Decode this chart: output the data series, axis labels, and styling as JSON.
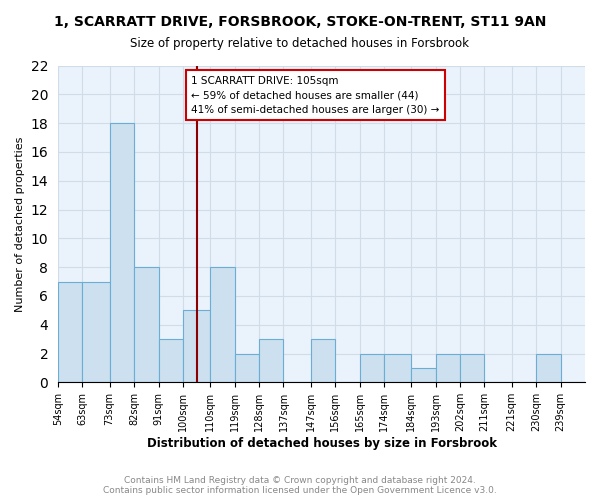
{
  "title": "1, SCARRATT DRIVE, FORSBROOK, STOKE-ON-TRENT, ST11 9AN",
  "subtitle": "Size of property relative to detached houses in Forsbrook",
  "xlabel": "Distribution of detached houses by size in Forsbrook",
  "ylabel": "Number of detached properties",
  "bin_labels": [
    "54sqm",
    "63sqm",
    "73sqm",
    "82sqm",
    "91sqm",
    "100sqm",
    "110sqm",
    "119sqm",
    "128sqm",
    "137sqm",
    "147sqm",
    "156sqm",
    "165sqm",
    "174sqm",
    "184sqm",
    "193sqm",
    "202sqm",
    "211sqm",
    "221sqm",
    "230sqm",
    "239sqm"
  ],
  "bin_edges": [
    54,
    63,
    73,
    82,
    91,
    100,
    110,
    119,
    128,
    137,
    147,
    156,
    165,
    174,
    184,
    193,
    202,
    211,
    221,
    230,
    239,
    248
  ],
  "bar_heights": [
    7,
    7,
    18,
    8,
    3,
    5,
    8,
    2,
    3,
    0,
    3,
    0,
    2,
    2,
    1,
    2,
    2,
    0,
    0,
    2,
    0
  ],
  "bar_color": "#cce0f0",
  "bar_edge_color": "#6aadd5",
  "grid_color": "#d0dce8",
  "background_color": "#eaf2fb",
  "property_line_x": 105,
  "property_line_color": "#8b0000",
  "annotation_text": "1 SCARRATT DRIVE: 105sqm\n← 59% of detached houses are smaller (44)\n41% of semi-detached houses are larger (30) →",
  "annotation_box_color": "#ffffff",
  "annotation_box_edge": "#cc0000",
  "ylim": [
    0,
    22
  ],
  "yticks": [
    0,
    2,
    4,
    6,
    8,
    10,
    12,
    14,
    16,
    18,
    20,
    22
  ],
  "footer": "Contains HM Land Registry data © Crown copyright and database right 2024.\nContains public sector information licensed under the Open Government Licence v3.0.",
  "footer_color": "#888888"
}
